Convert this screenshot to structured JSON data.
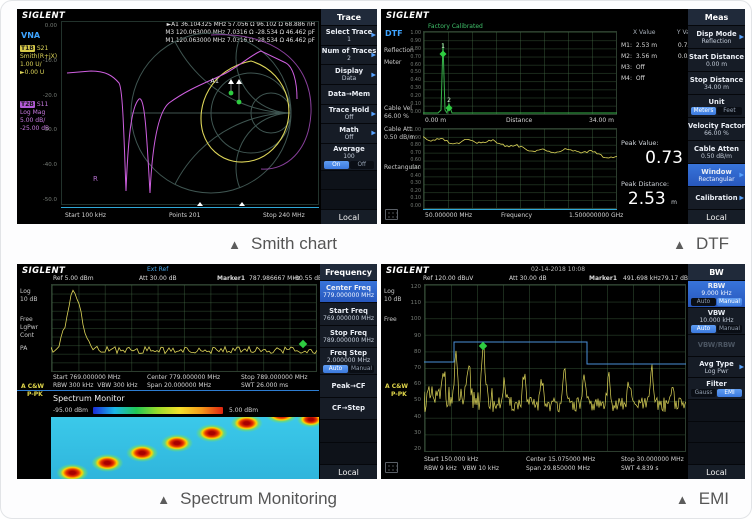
{
  "brand": "SIGLENT",
  "captions": {
    "marker": "▲",
    "items": [
      "Smith chart",
      "DTF",
      "Spectrum Monitoring",
      "EMI"
    ]
  },
  "vna": {
    "mode": "VNA",
    "t1": {
      "tag": "T1B",
      "name": "S21",
      "r1": "Smith(R+jX)",
      "r2": "1.00 U/",
      "r3": "►0.00 U"
    },
    "t2": {
      "tag": "T2B",
      "name": "S11",
      "r1": "Log Mag",
      "r2": "5.00 dB/",
      "r3": "-25.00 dB"
    },
    "marker_lines": [
      "►A1  36.104325 MHz    57.056 Ω   96.102 Ω   68.886 nH",
      "M3  120.063000 MHz   7.0316 Ω   -28.534 Ω   46.462 pF",
      "M1  120.063000 MHz   7.0316 Ω   -28.534 Ω   46.462 pF"
    ],
    "a1_label": "A1",
    "r_label": "R",
    "y_ticks": [
      "0.00",
      "-10.0",
      "-20.0",
      "-30.0",
      "-40.0",
      "-50.0"
    ],
    "axis": {
      "start": "Start 100 kHz",
      "points": "Points  201",
      "stop": "Stop 240 MHz"
    },
    "menu": {
      "header": "Trace",
      "local": "Local",
      "items": [
        {
          "label": "Select Trace",
          "value": "1",
          "arrow": true
        },
        {
          "label": "Num of Traces",
          "value": "2",
          "arrow": true
        },
        {
          "label": "Display",
          "value": "Data",
          "arrow": true
        },
        {
          "label": "Data→Mem"
        },
        {
          "label": "Trace Hold",
          "value": "Off",
          "arrow": true
        },
        {
          "label": "Math",
          "value": "Off",
          "arrow": true
        },
        {
          "label": "Average",
          "value": "100",
          "toggle": {
            "options": [
              "On",
              "Off"
            ],
            "active": 0
          }
        },
        {
          "blank": true
        },
        {
          "blank": true
        }
      ]
    }
  },
  "dtf": {
    "mode": "DTF",
    "left": {
      "l1": "Reflection",
      "l2": "Meter",
      "v1": "Cable Vel",
      "v2": "66.00 %",
      "a1": "Cable Att",
      "a2": "0.50 dB/m",
      "win": "Rectangular"
    },
    "calib": "Factory Calibrated",
    "y_ticks": [
      "1.00",
      "0.90",
      "0.80",
      "0.70",
      "0.60",
      "0.50",
      "0.40",
      "0.30",
      "0.20",
      "0.10",
      "0.00"
    ],
    "chart1": {
      "x0": "0.00 m",
      "xl": "Distance",
      "x1": "34.00 m",
      "m1": "1",
      "m2": "2"
    },
    "chart2": {
      "x0": "50.000000 MHz",
      "xl": "Frequency",
      "x1": "1.500000000 GHz"
    },
    "table": {
      "h1": "X Value",
      "h2": "Y Value",
      "rows": [
        {
          "m": "M1:",
          "x": "2.53 m",
          "y": "0.73"
        },
        {
          "m": "M2:",
          "x": "3.56 m",
          "y": "0.05"
        },
        {
          "m": "M3:",
          "x": "Off",
          "y": ""
        },
        {
          "m": "M4:",
          "x": "Off",
          "y": ""
        }
      ]
    },
    "peak": {
      "vl": "Peak Value:",
      "v": "0.73",
      "dl": "Peak Distance:",
      "d": "2.53",
      "du": "m"
    },
    "menu": {
      "header": "Meas",
      "local": "Local",
      "items": [
        {
          "label": "Disp Mode",
          "value": "Reflection",
          "arrow": true
        },
        {
          "label": "Start Distance",
          "value": "0.00 m"
        },
        {
          "label": "Stop Distance",
          "value": "34.00 m"
        },
        {
          "label": "Unit",
          "toggle": {
            "options": [
              "Meters",
              "Feet"
            ],
            "active": 0
          }
        },
        {
          "label": "Velocity Factor",
          "value": "66.00 %"
        },
        {
          "label": "Cable Atten",
          "value": "0.50 dB/m"
        },
        {
          "label": "Window",
          "value": "Rectangular",
          "active": true,
          "arrow": true
        },
        {
          "label": "Calibration",
          "arrow": true
        }
      ]
    }
  },
  "spectrum": {
    "header": {
      "ext": "Ext Ref",
      "ref": "Ref  5.00 dBm",
      "att": "Att  30.00 dB",
      "marker": "Marker1",
      "mfreq": "787.986667 MHz",
      "mamp": "-80.55 dBm"
    },
    "left": [
      "Log",
      "10 dB",
      "Free",
      "LgPwr",
      "Cont",
      "PA"
    ],
    "trace_tag": "A C&W",
    "trace_mode": "P-PK",
    "footer": {
      "start": "Start 769.000000 MHz",
      "center": "Center 779.000000 MHz",
      "stop": "Stop 789.000000 MHz",
      "rbw": "RBW 300 kHz",
      "vbw": "VBW 300 kHz",
      "span": "Span 20.000000 MHz",
      "swt": "SWT 26.000 ms"
    },
    "monitor": {
      "title": "Spectrum Monitor",
      "min": "-95.00 dBm",
      "max": "5.00 dBm"
    },
    "menu": {
      "header": "Frequency",
      "local": "Local",
      "items": [
        {
          "label": "Center Freq",
          "value": "779.000000 MHz",
          "active": true
        },
        {
          "label": "Start Freq",
          "value": "769.000000 MHz"
        },
        {
          "label": "Stop Freq",
          "value": "789.000000 MHz"
        },
        {
          "label": "Freq Step",
          "value": "2.000000 MHz",
          "toggle": {
            "options": [
              "Auto",
              "Manual"
            ],
            "active": 0
          }
        },
        {
          "label": "Peak→CF"
        },
        {
          "label": "CF→Step"
        },
        {
          "blank": true
        },
        {
          "blank": true
        }
      ]
    }
  },
  "emi": {
    "header": {
      "date": "02-14-2018 10:08",
      "ref": "Ref 120.00 dBuV",
      "att": "Att 30.00 dB",
      "marker": "Marker1",
      "mfreq": "491.698 kHz",
      "mamp": "79.17 dBuV"
    },
    "left": [
      "Log",
      "10 dB",
      "Free"
    ],
    "trace_tag": "A C&W",
    "trace_mode": "P-PK",
    "y_ticks": [
      "120",
      "110",
      "100",
      "90",
      "80",
      "70",
      "60",
      "50",
      "40",
      "30",
      "20"
    ],
    "footer": {
      "start": "Start 150.000 kHz",
      "center": "Center 15.075000 MHz",
      "stop": "Stop 30.000000 MHz",
      "rbw": "RBW 9 kHz",
      "vbw": "VBW 10 kHz",
      "span": "Span 29.850000 MHz",
      "swt": "SWT 4.839 s"
    },
    "menu": {
      "header": "BW",
      "local": "Local",
      "items": [
        {
          "label": "RBW",
          "value": "9.000 kHz",
          "active": true,
          "toggle": {
            "options": [
              "Auto",
              "Manual"
            ],
            "active": 1
          }
        },
        {
          "label": "VBW",
          "value": "10.000 kHz",
          "toggle": {
            "options": [
              "Auto",
              "Manual"
            ],
            "active": 0
          }
        },
        {
          "label": "VBW/RBW",
          "dim": true
        },
        {
          "label": "Avg Type",
          "value": "Log Pwr",
          "arrow": true
        },
        {
          "label": "Filter",
          "toggle": {
            "options": [
              "Gauss",
              "EMI"
            ],
            "active": 1
          }
        },
        {
          "blank": true
        },
        {
          "blank": true
        },
        {
          "blank": true
        }
      ]
    }
  }
}
